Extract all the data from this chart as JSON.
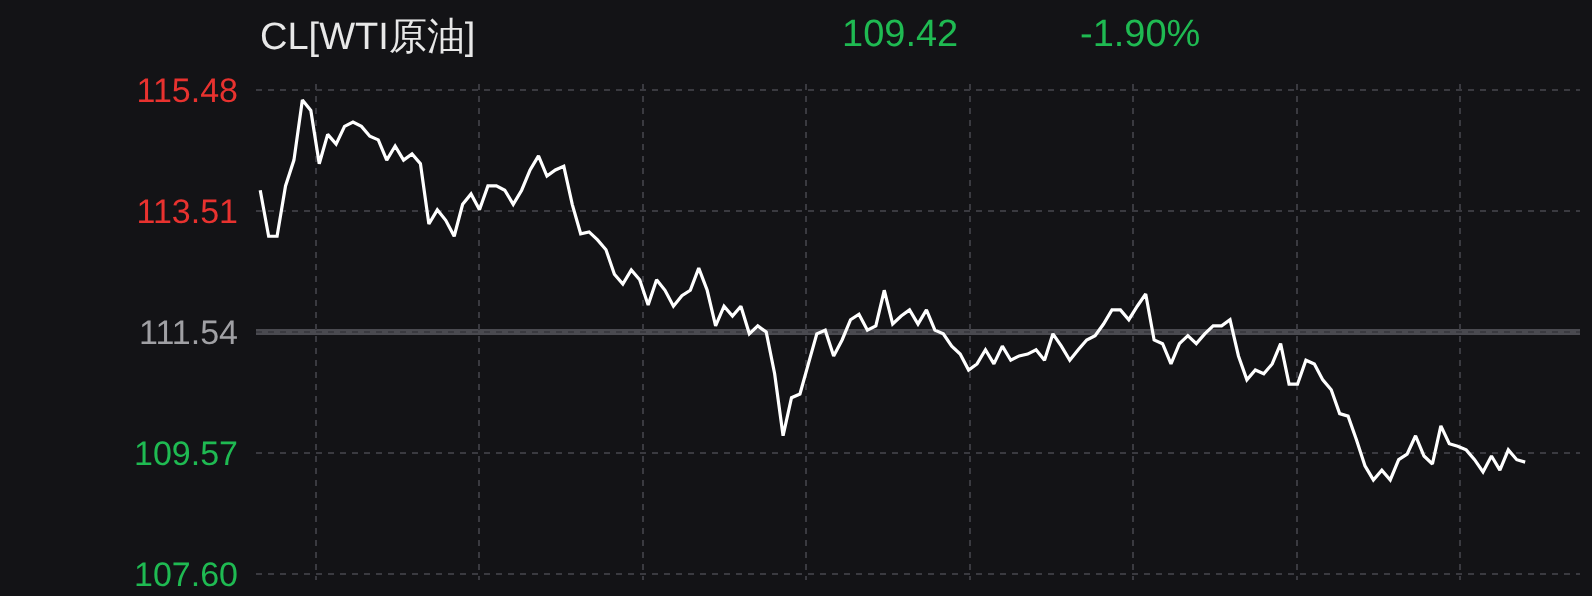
{
  "chart_data": {
    "type": "line",
    "title": "CL[WTI原油]",
    "annotations": [
      "109.42",
      "-1.90%"
    ],
    "categories": [
      null,
      null,
      null,
      null,
      null,
      null,
      null,
      null,
      null,
      null,
      null,
      null,
      null,
      null,
      null,
      null,
      null,
      null,
      null,
      null,
      null,
      null,
      null,
      null,
      null,
      null,
      null,
      null,
      null,
      null,
      null,
      null,
      null,
      null,
      null,
      null,
      null,
      null,
      null,
      null,
      null,
      null,
      null,
      null,
      null,
      null,
      null,
      null,
      null,
      null,
      null,
      null,
      null,
      null,
      null,
      null,
      null,
      null,
      null,
      null,
      null,
      null,
      null,
      null,
      null,
      null,
      null,
      null,
      null,
      null,
      null,
      null,
      null,
      null,
      null,
      null,
      null,
      null,
      null,
      null,
      null,
      null,
      null,
      null,
      null,
      null,
      null,
      null,
      null,
      null,
      null,
      null,
      null,
      null,
      null,
      null,
      null,
      null,
      null,
      null,
      null,
      null,
      null,
      null,
      null,
      null,
      null,
      null,
      null,
      null,
      null,
      null,
      null,
      null,
      null,
      null,
      null,
      null,
      null,
      null,
      null,
      null,
      null,
      null,
      null,
      null,
      null,
      null,
      null,
      null,
      null,
      null,
      null,
      null,
      null,
      null,
      null,
      null,
      null,
      null,
      null,
      null,
      null,
      null,
      null,
      null,
      null,
      null,
      null,
      null,
      null,
      null,
      null,
      null,
      null,
      null,
      null
    ],
    "series": [
      {
        "color": "#ffffff",
        "values": [
          113.85,
          113.1,
          113.1,
          113.92,
          114.34,
          115.32,
          115.15,
          114.28,
          114.76,
          114.6,
          114.89,
          114.96,
          114.89,
          114.73,
          114.67,
          114.34,
          114.57,
          114.34,
          114.44,
          114.28,
          113.3,
          113.53,
          113.36,
          113.1,
          113.62,
          113.79,
          113.53,
          113.92,
          113.92,
          113.85,
          113.62,
          113.85,
          114.18,
          114.41,
          114.08,
          114.18,
          114.24,
          113.62,
          113.14,
          113.17,
          113.04,
          112.88,
          112.48,
          112.32,
          112.55,
          112.39,
          111.98,
          112.39,
          112.22,
          111.96,
          112.13,
          112.22,
          112.58,
          112.22,
          111.64,
          111.96,
          111.8,
          111.96,
          111.51,
          111.64,
          111.54,
          110.86,
          109.85,
          110.47,
          110.53,
          111.02,
          111.51,
          111.57,
          111.15,
          111.41,
          111.74,
          111.83,
          111.57,
          111.64,
          112.22,
          111.67,
          111.8,
          111.9,
          111.67,
          111.9,
          111.57,
          111.51,
          111.31,
          111.18,
          110.92,
          111.02,
          111.25,
          111.02,
          111.31,
          111.08,
          111.15,
          111.18,
          111.25,
          111.08,
          111.51,
          111.31,
          111.08,
          111.25,
          111.41,
          111.48,
          111.67,
          111.9,
          111.9,
          111.74,
          111.96,
          112.16,
          111.41,
          111.35,
          111.02,
          111.35,
          111.48,
          111.35,
          111.51,
          111.64,
          111.64,
          111.74,
          111.15,
          110.76,
          110.92,
          110.86,
          111.02,
          111.35,
          110.69,
          110.69,
          111.08,
          111.02,
          110.76,
          110.6,
          110.21,
          110.17,
          109.78,
          109.36,
          109.13,
          109.29,
          109.13,
          109.46,
          109.55,
          109.85,
          109.52,
          109.39,
          110.01,
          109.72,
          109.68,
          109.62,
          109.46,
          109.26,
          109.52,
          109.29,
          109.62,
          109.46,
          109.42,
          null,
          null,
          null,
          null,
          null,
          null
        ]
      }
    ],
    "ylim": [
      107.5,
      115.58
    ],
    "yticks": [
      {
        "value": 107.6,
        "label": "107.60"
      },
      109.57,
      111.54,
      113.51,
      115.48
    ],
    "ref_lines": [
      {
        "axis": "y",
        "value": 111.54,
        "color": "#4a4a50"
      }
    ],
    "grid": true,
    "marker": "none",
    "line_style": "solid"
  }
}
